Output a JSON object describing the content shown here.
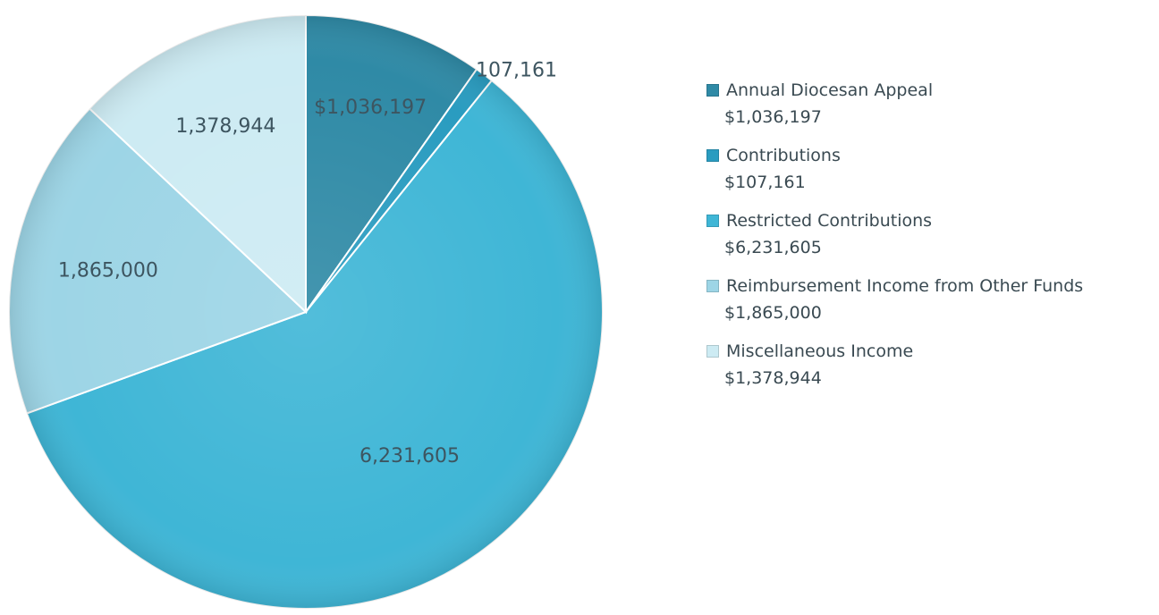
{
  "chart_data": {
    "type": "pie",
    "title": "",
    "slices": [
      {
        "name": "Annual Diocesan Appeal",
        "value": 1036197,
        "data_label": "$1,036,197",
        "legend_value": "$1,036,197",
        "color": "#2f8aa6"
      },
      {
        "name": "Contributions",
        "value": 107161,
        "data_label": "107,161",
        "legend_value": "$107,161",
        "color": "#2a9cc0"
      },
      {
        "name": "Restricted Contributions",
        "value": 6231605,
        "data_label": "6,231,605",
        "legend_value": "$6,231,605",
        "color": "#3fb6d6"
      },
      {
        "name": "Reimbursement Income from Other Funds",
        "value": 1865000,
        "data_label": "1,865,000",
        "legend_value": "$1,865,000",
        "color": "#9dd5e6"
      },
      {
        "name": "Miscellaneous Income",
        "value": 1378944,
        "data_label": "1,378,944",
        "legend_value": "$1,378,944",
        "color": "#cdebf3"
      }
    ],
    "start_angle": "12 o'clock",
    "direction": "clockwise",
    "legend_position": "right"
  }
}
